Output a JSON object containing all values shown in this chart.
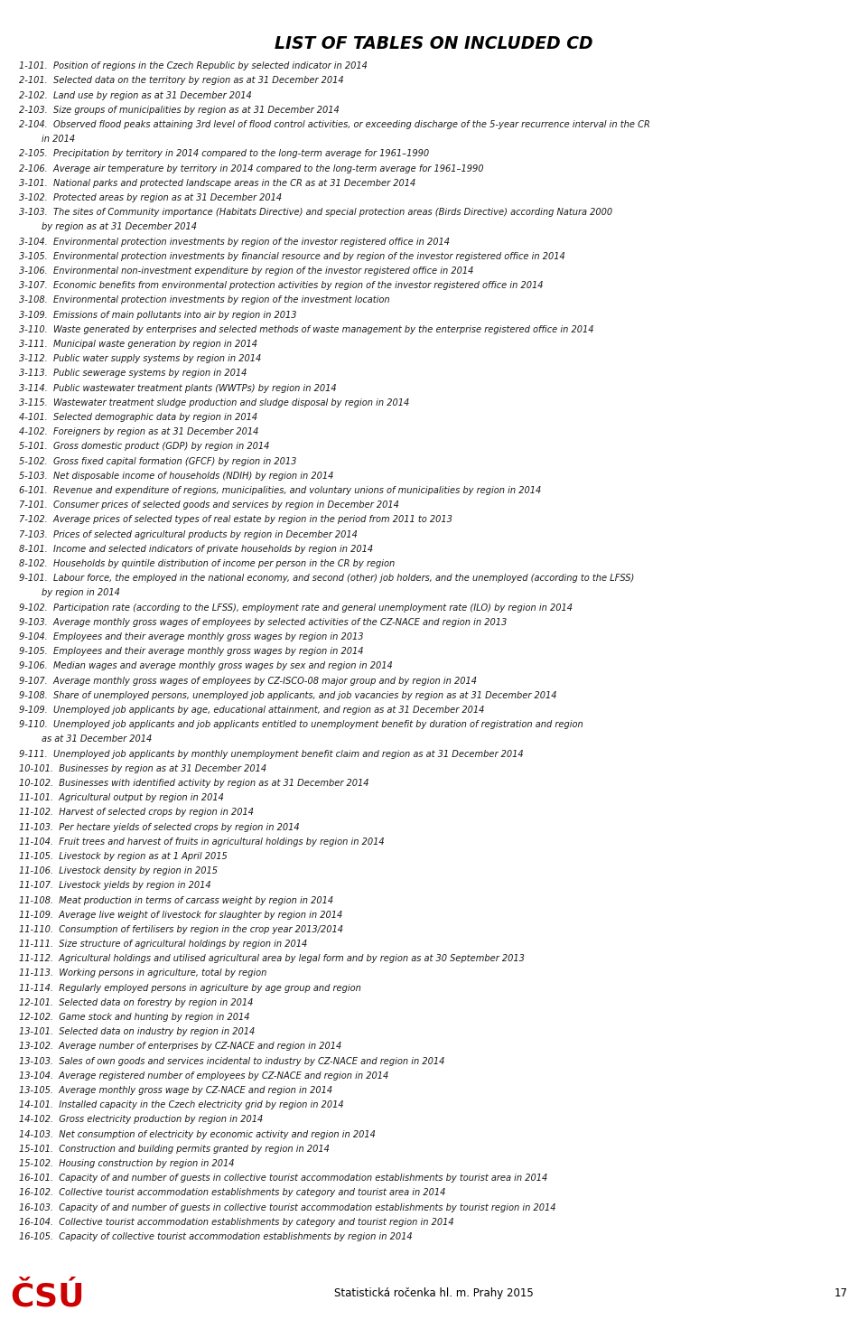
{
  "title": "LIST OF TABLES ON INCLUDED CD",
  "background_color": "#ffffff",
  "title_fontsize": 13.5,
  "text_fontsize": 7.1,
  "footer_text": "Statistická ročenka hl. m. Prahy 2015",
  "page_number": "17",
  "lines": [
    "1-101.  Position of regions in the Czech Republic by selected indicator in 2014",
    "2-101.  Selected data on the territory by region as at 31 December 2014",
    "2-102.  Land use by region as at 31 December 2014",
    "2-103.  Size groups of municipalities by region as at 31 December 2014",
    "2-104.  Observed flood peaks attaining 3rd level of flood control activities, or exceeding discharge of the 5-year recurrence interval in the CR\n        in 2014",
    "2-105.  Precipitation by territory in 2014 compared to the long-term average for 1961–1990",
    "2-106.  Average air temperature by territory in 2014 compared to the long-term average for 1961–1990",
    "3-101.  National parks and protected landscape areas in the CR as at 31 December 2014",
    "3-102.  Protected areas by region as at 31 December 2014",
    "3-103.  The sites of Community importance (Habitats Directive) and special protection areas (Birds Directive) according Natura 2000\n        by region as at 31 December 2014",
    "3-104.  Environmental protection investments by region of the investor registered office in 2014",
    "3-105.  Environmental protection investments by financial resource and by region of the investor registered office in 2014",
    "3-106.  Environmental non-investment expenditure by region of the investor registered office in 2014",
    "3-107.  Economic benefits from environmental protection activities by region of the investor registered office in 2014",
    "3-108.  Environmental protection investments by region of the investment location",
    "3-109.  Emissions of main pollutants into air by region in 2013",
    "3-110.  Waste generated by enterprises and selected methods of waste management by the enterprise registered office in 2014",
    "3-111.  Municipal waste generation by region in 2014",
    "3-112.  Public water supply systems by region in 2014",
    "3-113.  Public sewerage systems by region in 2014",
    "3-114.  Public wastewater treatment plants (WWTPs) by region in 2014",
    "3-115.  Wastewater treatment sludge production and sludge disposal by region in 2014",
    "4-101.  Selected demographic data by region in 2014",
    "4-102.  Foreigners by region as at 31 December 2014",
    "5-101.  Gross domestic product (GDP) by region in 2014",
    "5-102.  Gross fixed capital formation (GFCF) by region in 2013",
    "5-103.  Net disposable income of households (NDIH) by region in 2014",
    "6-101.  Revenue and expenditure of regions, municipalities, and voluntary unions of municipalities by region in 2014",
    "7-101.  Consumer prices of selected goods and services by region in December 2014",
    "7-102.  Average prices of selected types of real estate by region in the period from 2011 to 2013",
    "7-103.  Prices of selected agricultural products by region in December 2014",
    "8-101.  Income and selected indicators of private households by region in 2014",
    "8-102.  Households by quintile distribution of income per person in the CR by region",
    "9-101.  Labour force, the employed in the national economy, and second (other) job holders, and the unemployed (according to the LFSS)\n        by region in 2014",
    "9-102.  Participation rate (according to the LFSS), employment rate and general unemployment rate (ILO) by region in 2014",
    "9-103.  Average monthly gross wages of employees by selected activities of the CZ-NACE and region in 2013",
    "9-104.  Employees and their average monthly gross wages by region in 2013",
    "9-105.  Employees and their average monthly gross wages by region in 2014",
    "9-106.  Median wages and average monthly gross wages by sex and region in 2014",
    "9-107.  Average monthly gross wages of employees by CZ-ISCO-08 major group and by region in 2014",
    "9-108.  Share of unemployed persons, unemployed job applicants, and job vacancies by region as at 31 December 2014",
    "9-109.  Unemployed job applicants by age, educational attainment, and region as at 31 December 2014",
    "9-110.  Unemployed job applicants and job applicants entitled to unemployment benefit by duration of registration and region\n        as at 31 December 2014",
    "9-111.  Unemployed job applicants by monthly unemployment benefit claim and region as at 31 December 2014",
    "10-101.  Businesses by region as at 31 December 2014",
    "10-102.  Businesses with identified activity by region as at 31 December 2014",
    "11-101.  Agricultural output by region in 2014",
    "11-102.  Harvest of selected crops by region in 2014",
    "11-103.  Per hectare yields of selected crops by region in 2014",
    "11-104.  Fruit trees and harvest of fruits in agricultural holdings by region in 2014",
    "11-105.  Livestock by region as at 1 April 2015",
    "11-106.  Livestock density by region in 2015",
    "11-107.  Livestock yields by region in 2014",
    "11-108.  Meat production in terms of carcass weight by region in 2014",
    "11-109.  Average live weight of livestock for slaughter by region in 2014",
    "11-110.  Consumption of fertilisers by region in the crop year 2013/2014",
    "11-111.  Size structure of agricultural holdings by region in 2014",
    "11-112.  Agricultural holdings and utilised agricultural area by legal form and by region as at 30 September 2013",
    "11-113.  Working persons in agriculture, total by region",
    "11-114.  Regularly employed persons in agriculture by age group and region",
    "12-101.  Selected data on forestry by region in 2014",
    "12-102.  Game stock and hunting by region in 2014",
    "13-101.  Selected data on industry by region in 2014",
    "13-102.  Average number of enterprises by CZ-NACE and region in 2014",
    "13-103.  Sales of own goods and services incidental to industry by CZ-NACE and region in 2014",
    "13-104.  Average registered number of employees by CZ-NACE and region in 2014",
    "13-105.  Average monthly gross wage by CZ-NACE and region in 2014",
    "14-101.  Installed capacity in the Czech electricity grid by region in 2014",
    "14-102.  Gross electricity production by region in 2014",
    "14-103.  Net consumption of electricity by economic activity and region in 2014",
    "15-101.  Construction and building permits granted by region in 2014",
    "15-102.  Housing construction by region in 2014",
    "16-101.  Capacity of and number of guests in collective tourist accommodation establishments by tourist area in 2014",
    "16-102.  Collective tourist accommodation establishments by category and tourist area in 2014",
    "16-103.  Capacity of and number of guests in collective tourist accommodation establishments by tourist region in 2014",
    "16-104.  Collective tourist accommodation establishments by category and tourist region in 2014",
    "16-105.  Capacity of collective tourist accommodation establishments by region in 2014"
  ]
}
